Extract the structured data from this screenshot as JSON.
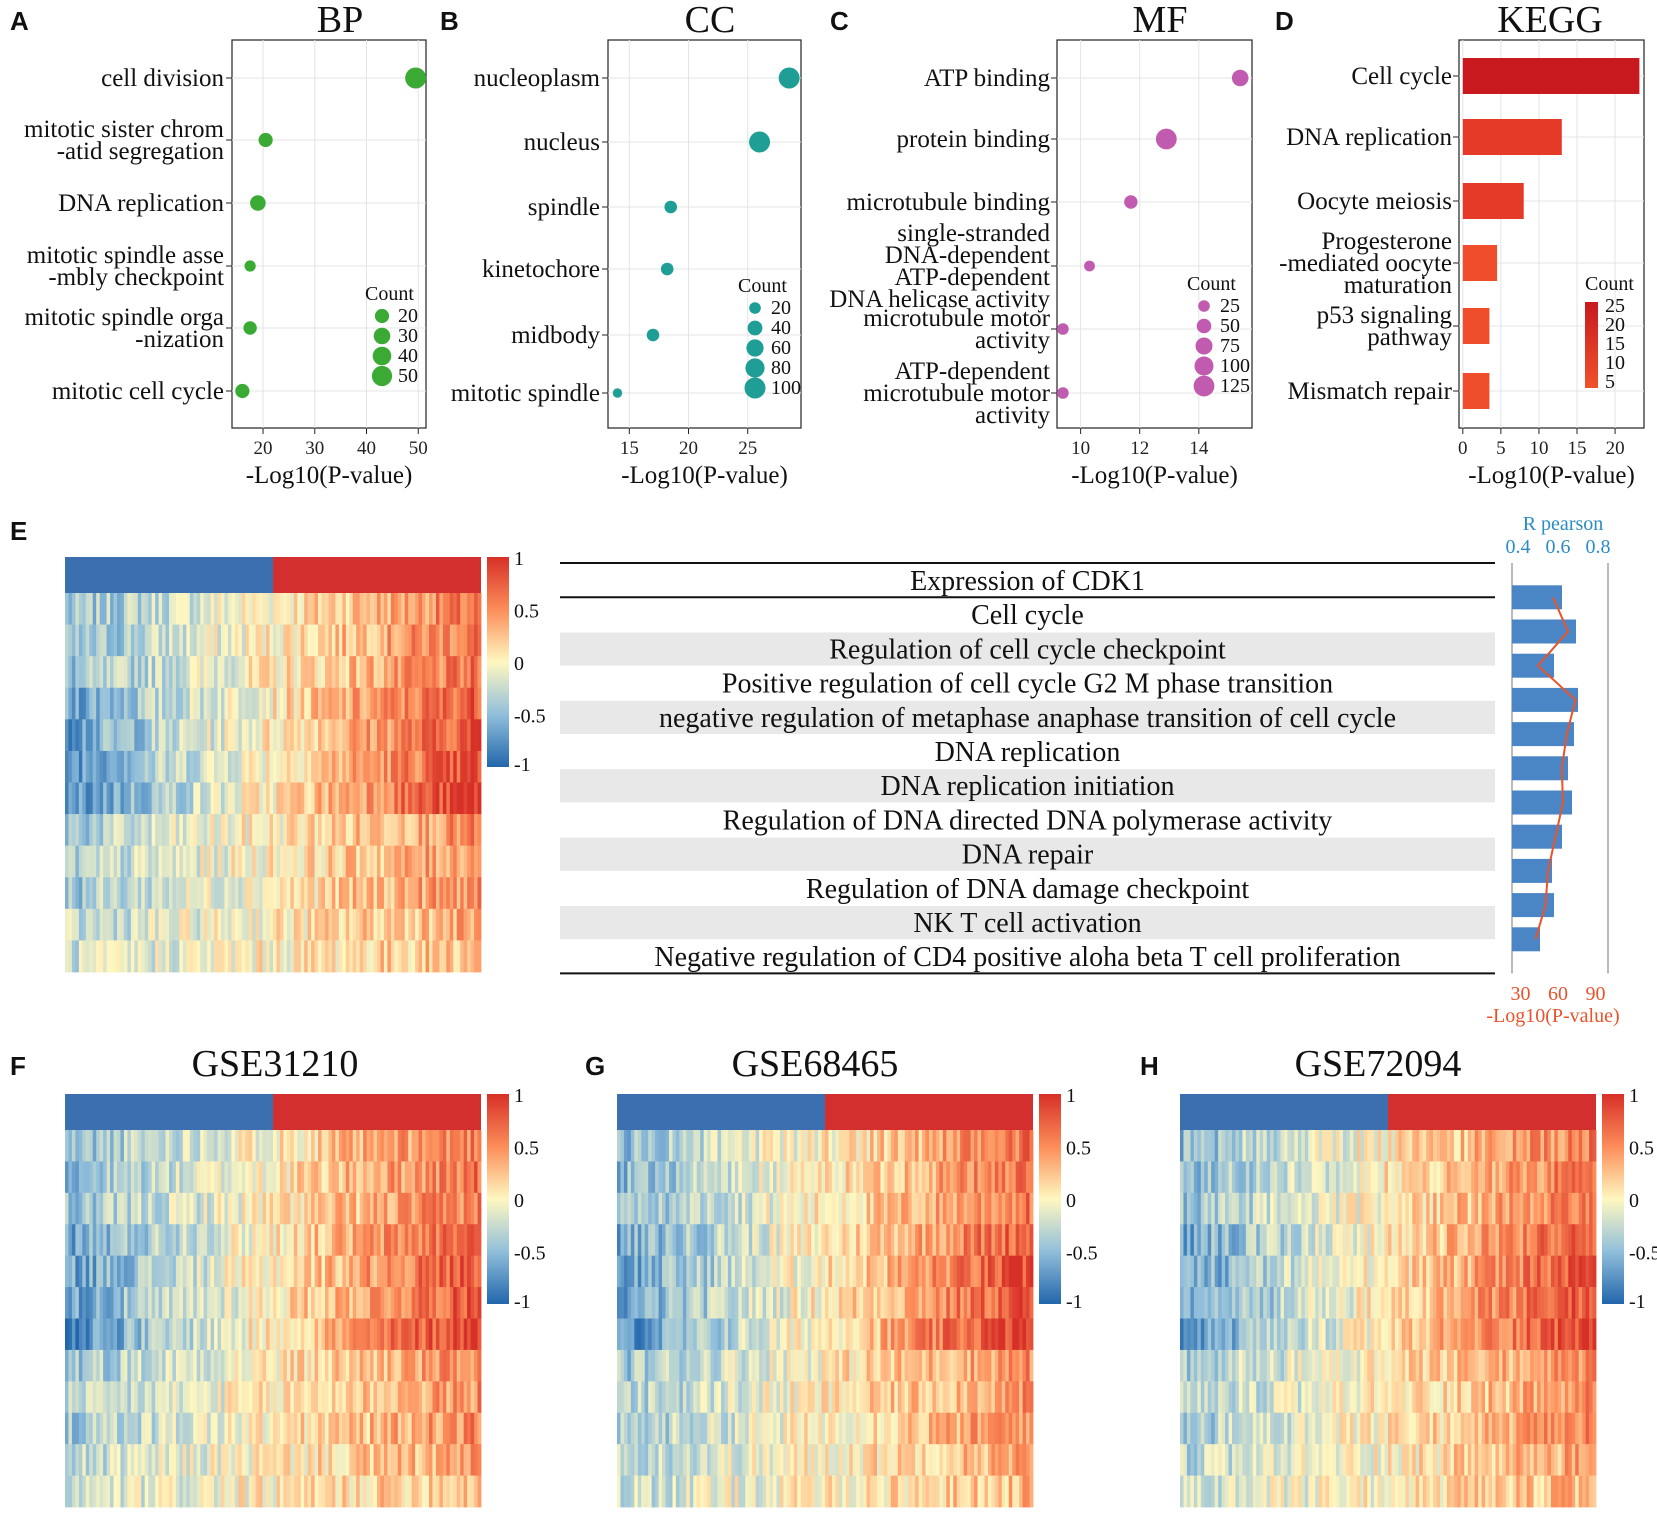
{
  "chart_data": [
    {
      "panel": "A",
      "title": "BP",
      "type": "scatter",
      "categories": [
        "cell division",
        "mitotic sister chrom -atid segregation",
        "DNA replication",
        "mitotic spindle asse -mbly checkpoint",
        "mitotic spindle orga -nization",
        "mitotic cell cycle"
      ],
      "category_lines": [
        [
          "cell division"
        ],
        [
          "mitotic sister chrom",
          "-atid segregation"
        ],
        [
          "DNA replication"
        ],
        [
          "mitotic spindle asse",
          "-mbly checkpoint"
        ],
        [
          "mitotic spindle orga",
          "-nization"
        ],
        [
          "mitotic cell cycle"
        ]
      ],
      "x": [
        49.5,
        20.5,
        19,
        17.5,
        17.5,
        16
      ],
      "count": [
        55,
        20,
        25,
        10,
        17,
        20
      ],
      "xlim": [
        14,
        51.5
      ],
      "xticks": [
        20,
        30,
        40,
        50
      ],
      "xlabel": "-Log10(P-value)",
      "legend_title": "Count",
      "legend_values": [
        20,
        30,
        40,
        50
      ],
      "color": "#3aaa35"
    },
    {
      "panel": "B",
      "title": "CC",
      "type": "scatter",
      "categories": [
        "nucleoplasm",
        "nucleus",
        "spindle",
        "kinetochore",
        "midbody",
        "mitotic spindle"
      ],
      "category_lines": [
        [
          "nucleoplasm"
        ],
        [
          "nucleus"
        ],
        [
          "spindle"
        ],
        [
          "kinetochore"
        ],
        [
          "midbody"
        ],
        [
          "mitotic spindle"
        ]
      ],
      "x": [
        28.5,
        26,
        18.5,
        18.2,
        17,
        14
      ],
      "count": [
        100,
        100,
        25,
        25,
        25,
        10
      ],
      "xlim": [
        13.2,
        29.5
      ],
      "xticks": [
        15,
        20,
        25
      ],
      "xlabel": "-Log10(P-value)",
      "legend_title": "Count",
      "legend_values": [
        20,
        40,
        60,
        80,
        100
      ],
      "color": "#1f9e96"
    },
    {
      "panel": "C",
      "title": "MF",
      "type": "scatter",
      "categories": [
        "ATP binding",
        "protein binding",
        "microtubule binding",
        "single-stranded DNA-dependent ATP-dependent DNA helicase activity",
        "microtubule motor activity",
        "ATP-dependent microtubule motor activity"
      ],
      "category_lines": [
        [
          "ATP binding"
        ],
        [
          "protein binding"
        ],
        [
          "microtubule binding"
        ],
        [
          "single-stranded",
          "DNA-dependent",
          "ATP-dependent",
          "DNA helicase activity"
        ],
        [
          "microtubule motor",
          "activity"
        ],
        [
          "ATP-dependent",
          "microtubule motor",
          "activity"
        ]
      ],
      "x": [
        15.4,
        12.9,
        11.7,
        10.3,
        9.4,
        9.4
      ],
      "count": [
        70,
        125,
        40,
        20,
        25,
        25
      ],
      "xlim": [
        9.2,
        15.8
      ],
      "xticks": [
        10,
        12,
        14
      ],
      "xlabel": "-Log10(P-value)",
      "legend_title": "Count",
      "legend_values": [
        25,
        50,
        75,
        100,
        125
      ],
      "color": "#c05bb0"
    },
    {
      "panel": "D",
      "title": "KEGG",
      "type": "bar",
      "categories": [
        "Cell cycle",
        "DNA replication",
        "Oocyte meiosis",
        "Progesterone -mediated oocyte maturation",
        "p53 signaling pathway",
        "Mismatch repair"
      ],
      "category_lines": [
        [
          "Cell cycle"
        ],
        [
          "DNA replication"
        ],
        [
          "Oocyte meiosis"
        ],
        [
          "Progesterone",
          "-mediated oocyte",
          "maturation"
        ],
        [
          "p53 signaling",
          "pathway"
        ],
        [
          "Mismatch repair"
        ]
      ],
      "values": [
        23.2,
        13,
        8,
        4.5,
        3.5,
        3.5
      ],
      "count": [
        26,
        12,
        12,
        8,
        7,
        6
      ],
      "xlim": [
        -0.5,
        23.8
      ],
      "xticks": [
        0,
        5,
        10,
        15,
        20
      ],
      "xlabel": "-Log10(P-value)",
      "legend_title": "Count",
      "legend_values": [
        25,
        20,
        15,
        10,
        5
      ]
    },
    {
      "panel": "E",
      "type": "heatmap+bar",
      "heatmap_scale": [
        1,
        0.5,
        0,
        -0.5,
        -1
      ],
      "table_header": "Expression of CDK1",
      "gene_sets": [
        "Cell cycle",
        "Regulation of cell cycle checkpoint",
        "Positive regulation of cell cycle G2 M phase transition",
        "negative regulation of metaphase anaphase transition of cell cycle",
        "DNA replication",
        "DNA replication initiation",
        "Regulation of DNA directed DNA polymerase activity",
        "DNA repair",
        "Regulation of DNA damage checkpoint",
        "NK T cell activation",
        "Negative regulation of CD4 positive aloha beta T cell proliferation"
      ],
      "r_pearson": [
        0.62,
        0.69,
        0.58,
        0.7,
        0.68,
        0.65,
        0.67,
        0.62,
        0.57,
        0.58,
        0.51
      ],
      "neg_log10_p": [
        56,
        68,
        44,
        74,
        67,
        63,
        64,
        58,
        52,
        50,
        42
      ],
      "r_axis_label": "R pearson",
      "r_ticks": [
        0.4,
        0.6,
        0.8
      ],
      "p_axis_label": "-Log10(P-value)",
      "p_ticks": [
        30,
        60,
        90
      ]
    },
    {
      "panel": "F",
      "title": "GSE31210",
      "type": "heatmap",
      "heatmap_scale": [
        1,
        0.5,
        0,
        -0.5,
        -1
      ]
    },
    {
      "panel": "G",
      "title": "GSE68465",
      "type": "heatmap",
      "heatmap_scale": [
        1,
        0.5,
        0,
        -0.5,
        -1
      ]
    },
    {
      "panel": "H",
      "title": "GSE72094",
      "type": "heatmap",
      "heatmap_scale": [
        1,
        0.5,
        0,
        -0.5,
        -1
      ]
    }
  ]
}
